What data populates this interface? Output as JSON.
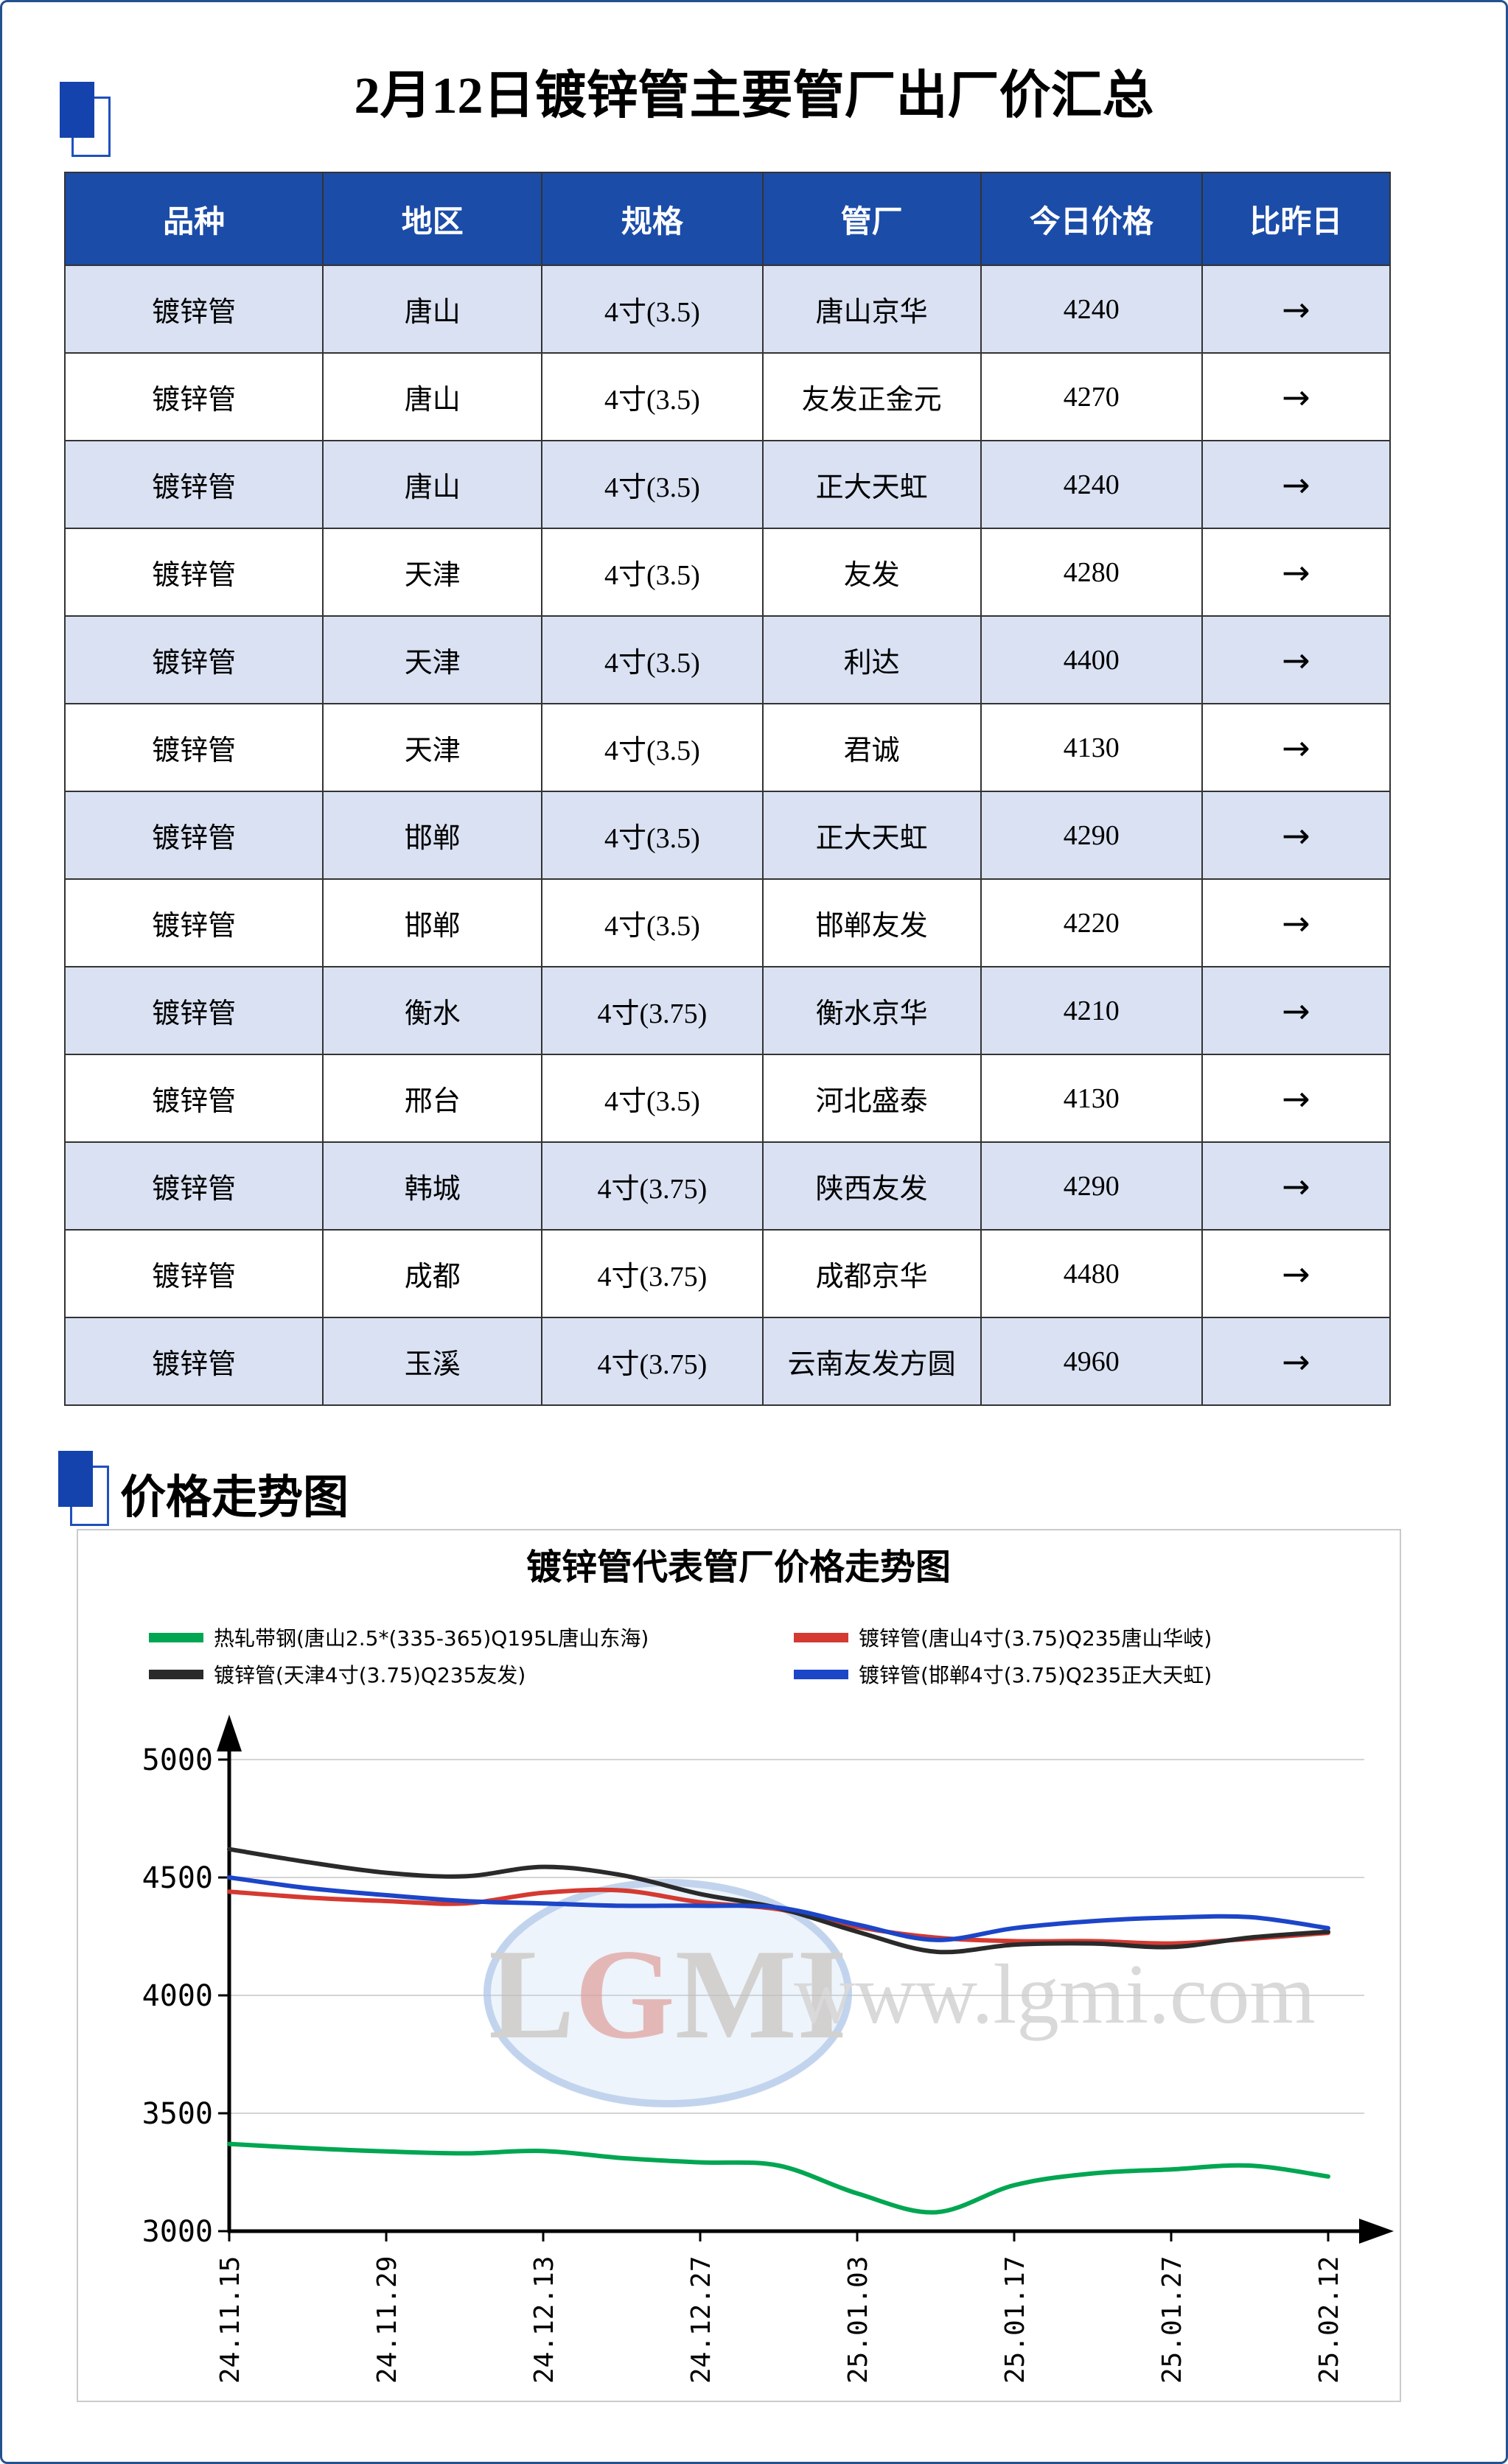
{
  "page": {
    "title": "2月12日镀锌管主要管厂出厂价汇总"
  },
  "section": {
    "heading": "价格走势图"
  },
  "table": {
    "headers": [
      "品种",
      "地区",
      "规格",
      "管厂",
      "今日价格",
      "比昨日"
    ],
    "rows": [
      [
        "镀锌管",
        "唐山",
        "4寸(3.5)",
        "唐山京华",
        "4240",
        "→"
      ],
      [
        "镀锌管",
        "唐山",
        "4寸(3.5)",
        "友发正金元",
        "4270",
        "→"
      ],
      [
        "镀锌管",
        "唐山",
        "4寸(3.5)",
        "正大天虹",
        "4240",
        "→"
      ],
      [
        "镀锌管",
        "天津",
        "4寸(3.5)",
        "友发",
        "4280",
        "→"
      ],
      [
        "镀锌管",
        "天津",
        "4寸(3.5)",
        "利达",
        "4400",
        "→"
      ],
      [
        "镀锌管",
        "天津",
        "4寸(3.5)",
        "君诚",
        "4130",
        "→"
      ],
      [
        "镀锌管",
        "邯郸",
        "4寸(3.5)",
        "正大天虹",
        "4290",
        "→"
      ],
      [
        "镀锌管",
        "邯郸",
        "4寸(3.5)",
        "邯郸友发",
        "4220",
        "→"
      ],
      [
        "镀锌管",
        "衡水",
        "4寸(3.75)",
        "衡水京华",
        "4210",
        "→"
      ],
      [
        "镀锌管",
        "邢台",
        "4寸(3.5)",
        "河北盛泰",
        "4130",
        "→"
      ],
      [
        "镀锌管",
        "韩城",
        "4寸(3.75)",
        "陕西友发",
        "4290",
        "→"
      ],
      [
        "镀锌管",
        "成都",
        "4寸(3.75)",
        "成都京华",
        "4480",
        "→"
      ],
      [
        "镀锌管",
        "玉溪",
        "4寸(3.75)",
        "云南友发方圆",
        "4960",
        "→"
      ]
    ]
  },
  "chart_data": {
    "type": "line",
    "title": "镀锌管代表管厂价格走势图",
    "x_tick_labels": [
      "24.11.15",
      "24.11.29",
      "24.12.13",
      "24.12.27",
      "25.01.03",
      "25.01.17",
      "25.01.27",
      "25.02.12"
    ],
    "x_t": [
      0,
      0.5,
      1,
      1.5,
      2,
      2.5,
      3,
      3.5,
      4,
      4.5,
      5,
      5.5,
      6,
      6.5,
      7
    ],
    "ylim": [
      3000,
      5000
    ],
    "yticks": [
      3000,
      3500,
      4000,
      4500,
      5000
    ],
    "grid": true,
    "legend_position": "top",
    "series": [
      {
        "name": "热轧带钢(唐山2.5*(335-365)Q195L唐山东海)",
        "color": "#00A651",
        "values": [
          3370,
          3352,
          3338,
          3330,
          3340,
          3310,
          3292,
          3278,
          3160,
          3080,
          3195,
          3245,
          3262,
          3278,
          3232
        ]
      },
      {
        "name": "镀锌管(唐山4寸(3.75)Q235唐山华岐)",
        "color": "#D43A31",
        "values": [
          4440,
          4415,
          4400,
          4390,
          4435,
          4445,
          4395,
          4365,
          4290,
          4245,
          4230,
          4230,
          4220,
          4240,
          4265
        ]
      },
      {
        "name": "镀锌管(天津4寸(3.75)Q235友发)",
        "color": "#2A2A2A",
        "values": [
          4620,
          4565,
          4520,
          4505,
          4545,
          4510,
          4430,
          4370,
          4270,
          4185,
          4215,
          4220,
          4205,
          4245,
          4270
        ]
      },
      {
        "name": "镀锌管(邯郸4寸(3.75)Q235正大天虹)",
        "color": "#1C45C8",
        "values": [
          4500,
          4455,
          4425,
          4400,
          4390,
          4380,
          4380,
          4372,
          4300,
          4235,
          4285,
          4315,
          4330,
          4332,
          4285
        ]
      }
    ],
    "watermark": {
      "logo_text": "LGMI",
      "url_text": "www.lgmi.com"
    }
  }
}
